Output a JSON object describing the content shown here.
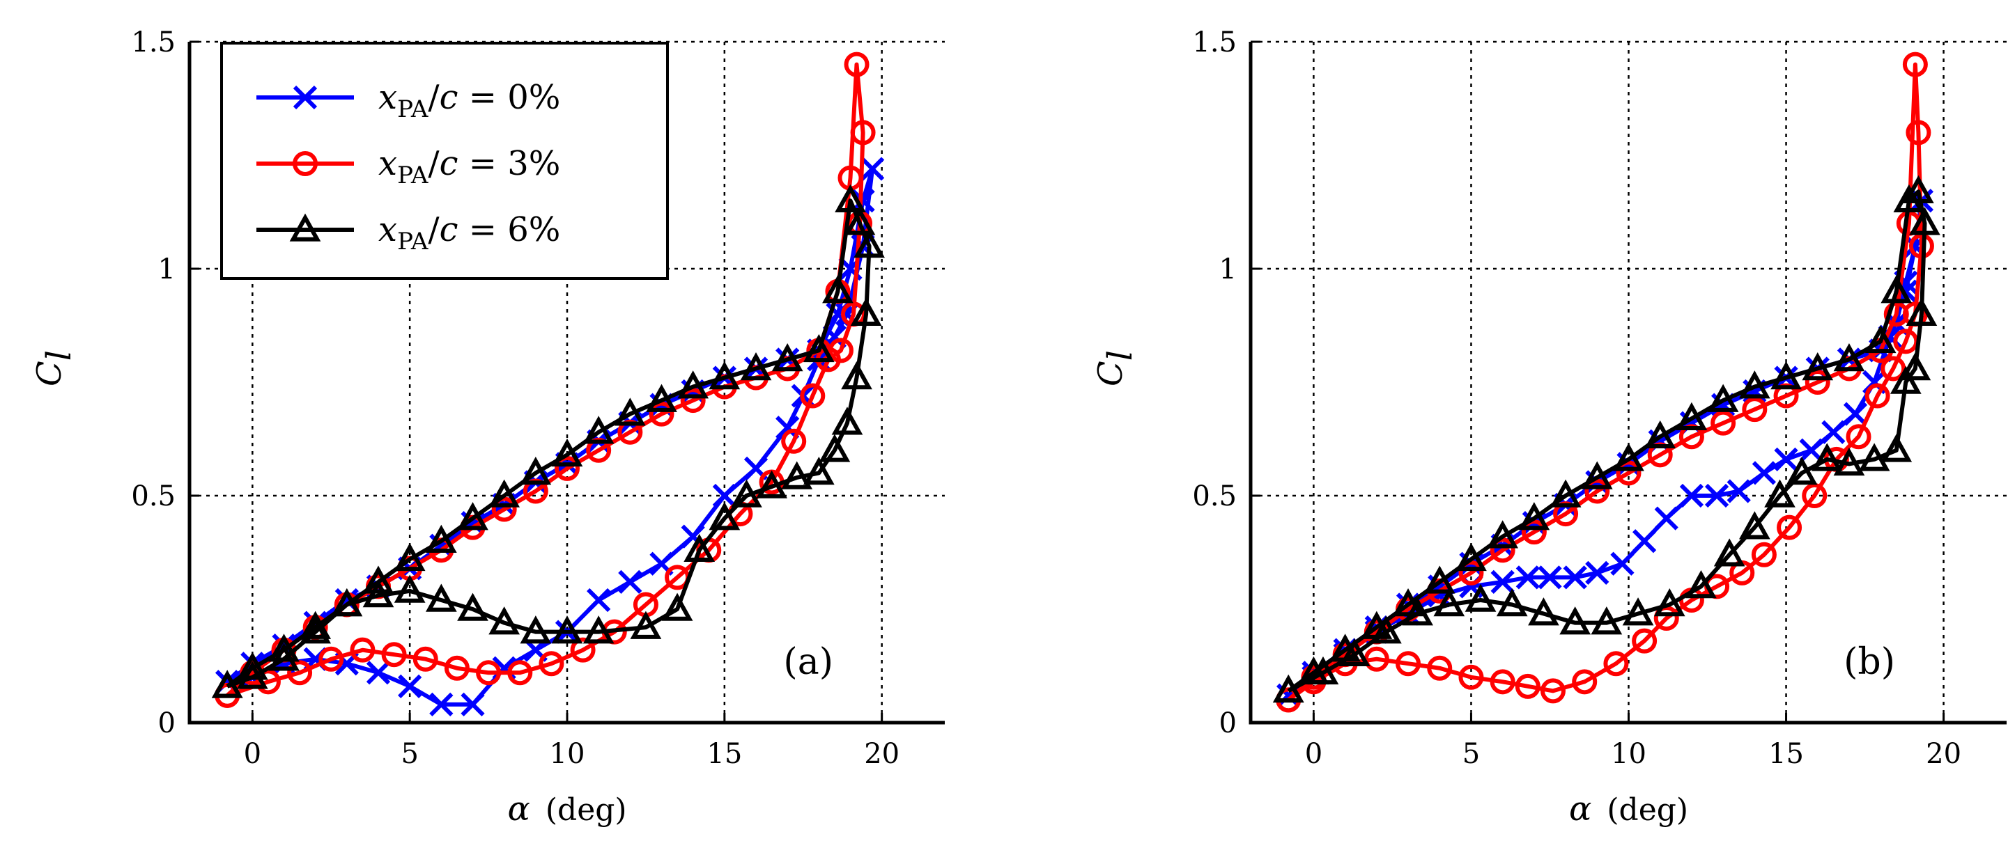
{
  "figure": {
    "legend": [
      {
        "var": "x",
        "sub": "PA",
        "rest": "/c = 0%",
        "color": "#0000ff",
        "marker": "x"
      },
      {
        "var": "x",
        "sub": "PA",
        "rest": "/c = 3%",
        "color": "#ff0000",
        "marker": "o"
      },
      {
        "var": "x",
        "sub": "PA",
        "rest": "/c = 6%",
        "color": "#000000",
        "marker": "^"
      }
    ]
  },
  "chart_data": [
    {
      "type": "line",
      "panel_label": "(a)",
      "xlabel": "α",
      "xunit": "(deg)",
      "ylabel": "C",
      "ylabel_sub": "l",
      "xlim": [
        -2,
        22
      ],
      "ylim": [
        0,
        1.5
      ],
      "xticks": [
        0,
        5,
        10,
        15,
        20
      ],
      "yticks": [
        0,
        0.5,
        1,
        1.5
      ],
      "ytick_labels": [
        "0",
        "0.5",
        "1",
        "1.5"
      ],
      "grid": true,
      "legend_position": "top-left",
      "series": [
        {
          "name": "xPA/c = 0%",
          "color": "#0000ff",
          "marker": "x",
          "x": [
            -0.8,
            0,
            1,
            2,
            3,
            4,
            5,
            6,
            7,
            8,
            9,
            10,
            11,
            12,
            13,
            14,
            15,
            16,
            17,
            18,
            18.6,
            19,
            19.4,
            19.7,
            19.4,
            18.9,
            18.5,
            18,
            17.5,
            17,
            16,
            15,
            14,
            13,
            12,
            11,
            10,
            9,
            8,
            7,
            6,
            5,
            4,
            3,
            2,
            1,
            0,
            -0.8
          ],
          "y": [
            0.09,
            0.13,
            0.17,
            0.22,
            0.27,
            0.3,
            0.34,
            0.39,
            0.44,
            0.48,
            0.53,
            0.57,
            0.62,
            0.66,
            0.7,
            0.73,
            0.76,
            0.78,
            0.8,
            0.82,
            0.9,
            1.0,
            1.15,
            1.22,
            1.05,
            0.9,
            0.85,
            0.8,
            0.72,
            0.65,
            0.56,
            0.5,
            0.41,
            0.35,
            0.31,
            0.27,
            0.2,
            0.16,
            0.12,
            0.04,
            0.04,
            0.08,
            0.11,
            0.13,
            0.14,
            0.13,
            0.1,
            0.09
          ]
        },
        {
          "name": "xPA/c = 3%",
          "color": "#ff0000",
          "marker": "o",
          "x": [
            -0.8,
            0,
            1,
            2,
            3,
            4,
            5,
            6,
            7,
            8,
            9,
            10,
            11,
            12,
            13,
            14,
            15,
            16,
            17,
            18,
            18.6,
            19,
            19.2,
            19.4,
            19.3,
            19.1,
            18.7,
            18.3,
            17.8,
            17.2,
            16.5,
            15.5,
            14.5,
            13.5,
            12.5,
            11.5,
            10.5,
            9.5,
            8.5,
            7.5,
            6.5,
            5.5,
            4.5,
            3.5,
            2.5,
            1.5,
            0.5,
            -0.8
          ],
          "y": [
            0.06,
            0.11,
            0.16,
            0.21,
            0.26,
            0.3,
            0.34,
            0.38,
            0.43,
            0.47,
            0.51,
            0.56,
            0.6,
            0.64,
            0.68,
            0.71,
            0.74,
            0.76,
            0.78,
            0.82,
            0.95,
            1.2,
            1.45,
            1.3,
            1.1,
            0.9,
            0.82,
            0.8,
            0.72,
            0.62,
            0.53,
            0.46,
            0.38,
            0.32,
            0.26,
            0.2,
            0.16,
            0.13,
            0.11,
            0.11,
            0.12,
            0.14,
            0.15,
            0.16,
            0.14,
            0.11,
            0.09,
            0.06
          ]
        },
        {
          "name": "xPA/c = 6%",
          "color": "#000000",
          "marker": "^",
          "x": [
            -0.8,
            0,
            1,
            2,
            3,
            4,
            5,
            6,
            7,
            8,
            9,
            10,
            11,
            12,
            13,
            14,
            15,
            16,
            17,
            18,
            18.6,
            19,
            19.3,
            19.6,
            19.5,
            19.2,
            18.9,
            18.5,
            18,
            17.3,
            16.5,
            15.7,
            15,
            14.2,
            13.5,
            12.5,
            11,
            10,
            9,
            8,
            7,
            6,
            5,
            4,
            3,
            2,
            1,
            0,
            -0.8
          ],
          "y": [
            0.08,
            0.12,
            0.16,
            0.21,
            0.26,
            0.31,
            0.36,
            0.4,
            0.45,
            0.5,
            0.55,
            0.59,
            0.64,
            0.68,
            0.71,
            0.74,
            0.76,
            0.78,
            0.8,
            0.82,
            0.95,
            1.15,
            1.1,
            1.05,
            0.9,
            0.76,
            0.66,
            0.6,
            0.55,
            0.54,
            0.52,
            0.5,
            0.45,
            0.38,
            0.25,
            0.21,
            0.2,
            0.2,
            0.2,
            0.22,
            0.25,
            0.27,
            0.29,
            0.28,
            0.26,
            0.2,
            0.14,
            0.1,
            0.08
          ]
        }
      ]
    },
    {
      "type": "line",
      "panel_label": "(b)",
      "xlabel": "α",
      "xunit": "(deg)",
      "ylabel": "C",
      "ylabel_sub": "l",
      "xlim": [
        -2,
        22
      ],
      "ylim": [
        0,
        1.5
      ],
      "xticks": [
        0,
        5,
        10,
        15,
        20
      ],
      "yticks": [
        0,
        0.5,
        1,
        1.5
      ],
      "ytick_labels": [
        "0",
        "0.5",
        "1",
        "1.5"
      ],
      "grid": true,
      "series": [
        {
          "name": "xPA/c = 0%",
          "color": "#0000ff",
          "marker": "x",
          "x": [
            -0.8,
            0,
            1,
            2,
            3,
            4,
            5,
            6,
            7,
            8,
            9,
            10,
            11,
            12,
            13,
            14,
            15,
            16,
            17,
            18,
            18.5,
            18.8,
            19.1,
            19.3,
            19.1,
            18.8,
            18.3,
            17.8,
            17.2,
            16.5,
            15.8,
            15,
            14.3,
            13.5,
            12.8,
            12,
            11.2,
            10.5,
            9.8,
            9,
            8.3,
            7.5,
            6.8,
            6,
            5,
            4,
            3,
            2,
            1,
            0,
            -0.8
          ],
          "y": [
            0.06,
            0.11,
            0.16,
            0.21,
            0.26,
            0.3,
            0.35,
            0.39,
            0.44,
            0.48,
            0.53,
            0.57,
            0.62,
            0.66,
            0.7,
            0.73,
            0.76,
            0.78,
            0.8,
            0.82,
            0.88,
            0.97,
            1.05,
            1.15,
            1.05,
            0.95,
            0.85,
            0.75,
            0.68,
            0.64,
            0.6,
            0.58,
            0.55,
            0.51,
            0.5,
            0.5,
            0.45,
            0.4,
            0.35,
            0.33,
            0.32,
            0.32,
            0.32,
            0.31,
            0.3,
            0.28,
            0.24,
            0.2,
            0.15,
            0.1,
            0.06
          ]
        },
        {
          "name": "xPA/c = 3%",
          "color": "#ff0000",
          "marker": "o",
          "x": [
            -0.8,
            0,
            1,
            2,
            3,
            4,
            5,
            6,
            7,
            8,
            9,
            10,
            11,
            12,
            13,
            14,
            15,
            16,
            17,
            18,
            18.5,
            18.9,
            19.1,
            19.2,
            19.3,
            19.1,
            18.8,
            18.4,
            17.9,
            17.3,
            16.6,
            15.9,
            15.1,
            14.3,
            13.6,
            12.8,
            12,
            11.2,
            10.5,
            9.6,
            8.6,
            7.6,
            6.8,
            6,
            5,
            4,
            3,
            2,
            1,
            0,
            -0.8
          ],
          "y": [
            0.05,
            0.1,
            0.15,
            0.2,
            0.25,
            0.29,
            0.33,
            0.38,
            0.42,
            0.46,
            0.51,
            0.55,
            0.59,
            0.63,
            0.66,
            0.69,
            0.72,
            0.75,
            0.78,
            0.82,
            0.9,
            1.1,
            1.45,
            1.3,
            1.05,
            0.9,
            0.84,
            0.78,
            0.72,
            0.63,
            0.58,
            0.5,
            0.43,
            0.37,
            0.33,
            0.3,
            0.27,
            0.23,
            0.18,
            0.13,
            0.09,
            0.07,
            0.08,
            0.09,
            0.1,
            0.12,
            0.13,
            0.14,
            0.13,
            0.09,
            0.05
          ]
        },
        {
          "name": "xPA/c = 6%",
          "color": "#000000",
          "marker": "^",
          "x": [
            -0.8,
            0,
            1,
            2,
            3,
            4,
            5,
            6,
            7,
            8,
            9,
            10,
            11,
            12,
            13,
            14,
            15,
            16,
            17,
            18,
            18.5,
            18.9,
            19.2,
            19.4,
            19.3,
            19.1,
            18.8,
            18.5,
            17.8,
            17,
            16.3,
            15.5,
            14.8,
            14,
            13.2,
            12.3,
            11.3,
            10.3,
            9.3,
            8.3,
            7.3,
            6.3,
            5.3,
            4.3,
            3.3,
            2.3,
            1.3,
            0.3,
            -0.8
          ],
          "y": [
            0.07,
            0.11,
            0.16,
            0.21,
            0.26,
            0.31,
            0.36,
            0.41,
            0.45,
            0.5,
            0.54,
            0.58,
            0.63,
            0.67,
            0.71,
            0.74,
            0.76,
            0.78,
            0.8,
            0.84,
            0.95,
            1.15,
            1.17,
            1.1,
            0.9,
            0.78,
            0.75,
            0.6,
            0.58,
            0.57,
            0.58,
            0.55,
            0.5,
            0.43,
            0.37,
            0.3,
            0.26,
            0.24,
            0.22,
            0.22,
            0.24,
            0.26,
            0.27,
            0.26,
            0.24,
            0.2,
            0.15,
            0.11,
            0.07
          ]
        }
      ]
    }
  ]
}
